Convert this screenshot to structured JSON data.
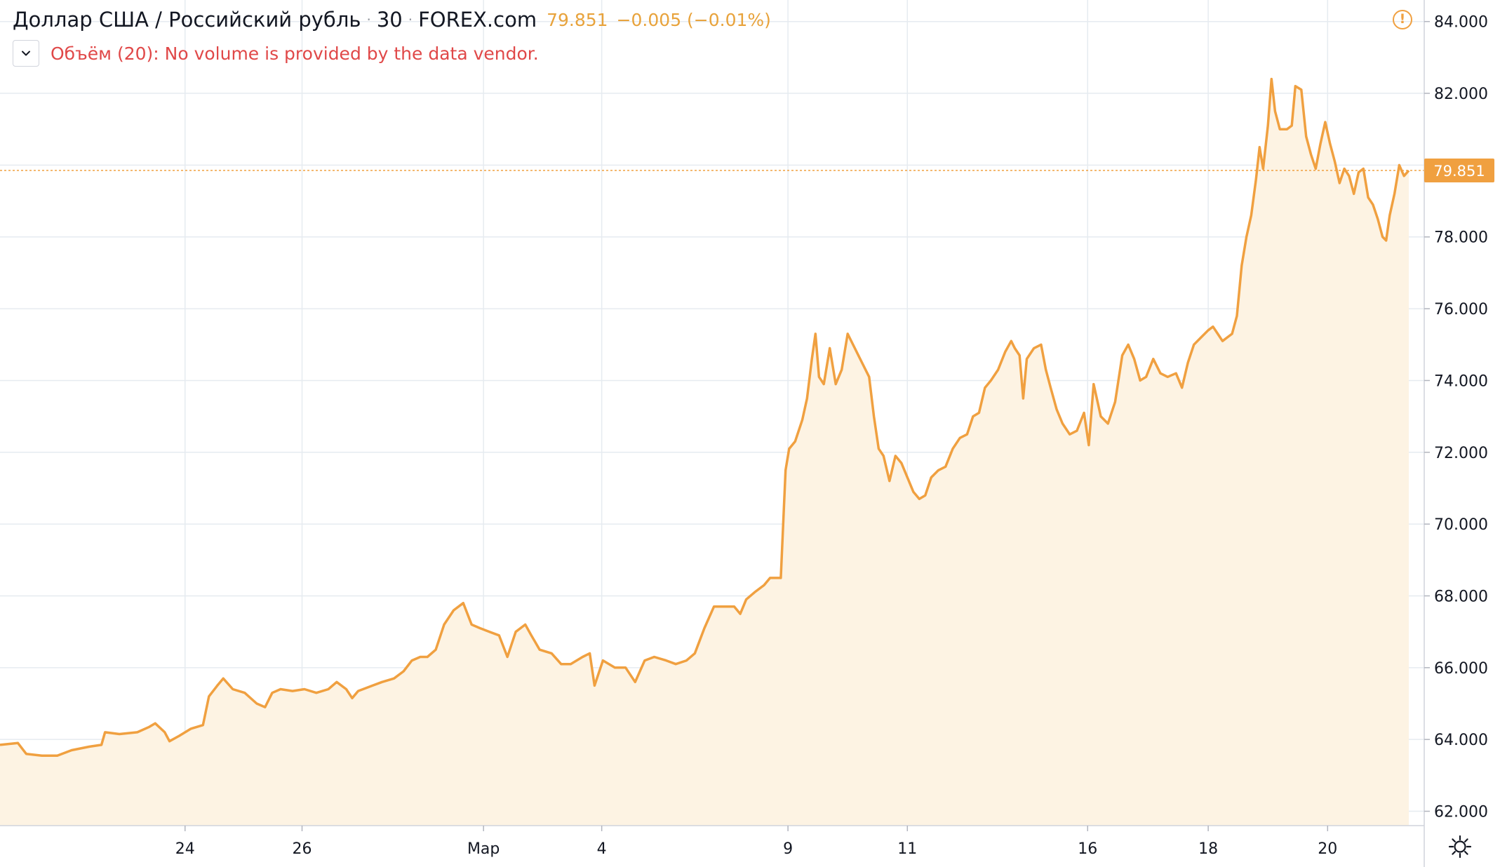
{
  "header": {
    "symbol": "Доллар США / Российский рубль",
    "interval": "30",
    "exchange": "FOREX.com",
    "last_price": "79.851",
    "change": "−0.005 (−0.01%)"
  },
  "volume_indicator": {
    "message": "Объём (20): No volume is provided by the data vendor."
  },
  "colors": {
    "line": "#f0a040",
    "fill": "#fdf3e3",
    "grid": "#e6ebf0",
    "price_tag": "#f0a040",
    "warning": "#f0a040",
    "volume_msg": "#e04848"
  },
  "icons": [
    "chevron-down-icon",
    "warning-icon",
    "gear-icon"
  ],
  "chart_data": {
    "type": "area",
    "title": "Доллар США / Российский рубль",
    "ylim": [
      61.6,
      84.6
    ],
    "xlim": [
      0,
      1180
    ],
    "grid": true,
    "price_axis": "right",
    "last_price": 79.851,
    "y_ticks": [
      {
        "value": 62,
        "label": "62.000"
      },
      {
        "value": 64,
        "label": "64.000"
      },
      {
        "value": 66,
        "label": "66.000"
      },
      {
        "value": 68,
        "label": "68.000"
      },
      {
        "value": 70,
        "label": "70.000"
      },
      {
        "value": 72,
        "label": "72.000"
      },
      {
        "value": 74,
        "label": "74.000"
      },
      {
        "value": 76,
        "label": "76.000"
      },
      {
        "value": 78,
        "label": "78.000"
      },
      {
        "value": 80,
        "label": "80.000"
      },
      {
        "value": 82,
        "label": "82.000"
      },
      {
        "value": 84,
        "label": "84.000"
      }
    ],
    "x_ticks": [
      {
        "x": 155,
        "label": "24"
      },
      {
        "x": 253,
        "label": "26"
      },
      {
        "x": 405,
        "label": "Мар"
      },
      {
        "x": 504,
        "label": "4"
      },
      {
        "x": 660,
        "label": "9"
      },
      {
        "x": 760,
        "label": "11"
      },
      {
        "x": 911,
        "label": "16"
      },
      {
        "x": 1012,
        "label": "18"
      },
      {
        "x": 1112,
        "label": "20"
      }
    ],
    "series": [
      {
        "points": [
          [
            0,
            63.85
          ],
          [
            15,
            63.9
          ],
          [
            22,
            63.6
          ],
          [
            35,
            63.55
          ],
          [
            48,
            63.55
          ],
          [
            60,
            63.7
          ],
          [
            75,
            63.8
          ],
          [
            85,
            63.85
          ],
          [
            88,
            64.2
          ],
          [
            100,
            64.15
          ],
          [
            115,
            64.2
          ],
          [
            125,
            64.35
          ],
          [
            130,
            64.45
          ],
          [
            138,
            64.2
          ],
          [
            142,
            63.95
          ],
          [
            150,
            64.1
          ],
          [
            160,
            64.3
          ],
          [
            170,
            64.4
          ],
          [
            175,
            65.2
          ],
          [
            182,
            65.5
          ],
          [
            187,
            65.7
          ],
          [
            195,
            65.4
          ],
          [
            205,
            65.3
          ],
          [
            215,
            65.0
          ],
          [
            222,
            64.9
          ],
          [
            228,
            65.3
          ],
          [
            235,
            65.4
          ],
          [
            245,
            65.35
          ],
          [
            255,
            65.4
          ],
          [
            265,
            65.3
          ],
          [
            275,
            65.4
          ],
          [
            282,
            65.6
          ],
          [
            290,
            65.4
          ],
          [
            295,
            65.15
          ],
          [
            300,
            65.35
          ],
          [
            312,
            65.5
          ],
          [
            320,
            65.6
          ],
          [
            330,
            65.7
          ],
          [
            338,
            65.9
          ],
          [
            345,
            66.2
          ],
          [
            352,
            66.3
          ],
          [
            358,
            66.3
          ],
          [
            365,
            66.5
          ],
          [
            372,
            67.2
          ],
          [
            380,
            67.6
          ],
          [
            388,
            67.8
          ],
          [
            395,
            67.2
          ],
          [
            402,
            67.1
          ],
          [
            410,
            67.0
          ],
          [
            418,
            66.9
          ],
          [
            425,
            66.3
          ],
          [
            432,
            67.0
          ],
          [
            440,
            67.2
          ],
          [
            445,
            66.9
          ],
          [
            452,
            66.5
          ],
          [
            462,
            66.4
          ],
          [
            470,
            66.1
          ],
          [
            478,
            66.1
          ],
          [
            488,
            66.3
          ],
          [
            494,
            66.4
          ],
          [
            498,
            65.5
          ],
          [
            505,
            66.2
          ],
          [
            515,
            66.0
          ],
          [
            524,
            66.0
          ],
          [
            532,
            65.6
          ],
          [
            540,
            66.2
          ],
          [
            548,
            66.3
          ],
          [
            558,
            66.2
          ],
          [
            566,
            66.1
          ],
          [
            575,
            66.2
          ],
          [
            582,
            66.4
          ],
          [
            590,
            67.1
          ],
          [
            598,
            67.7
          ],
          [
            606,
            67.7
          ],
          [
            615,
            67.7
          ],
          [
            620,
            67.5
          ],
          [
            625,
            67.9
          ],
          [
            632,
            68.1
          ],
          [
            640,
            68.3
          ],
          [
            645,
            68.5
          ],
          [
            650,
            68.5
          ],
          [
            654,
            68.5
          ],
          [
            656,
            70.0
          ],
          [
            658,
            71.5
          ],
          [
            661,
            72.1
          ],
          [
            666,
            72.3
          ],
          [
            672,
            72.9
          ],
          [
            676,
            73.5
          ],
          [
            680,
            74.6
          ],
          [
            683,
            75.3
          ],
          [
            686,
            74.1
          ],
          [
            690,
            73.9
          ],
          [
            695,
            74.9
          ],
          [
            700,
            73.9
          ],
          [
            705,
            74.3
          ],
          [
            710,
            75.3
          ],
          [
            716,
            74.9
          ],
          [
            722,
            74.5
          ],
          [
            728,
            74.1
          ],
          [
            732,
            73.0
          ],
          [
            736,
            72.1
          ],
          [
            740,
            71.9
          ],
          [
            745,
            71.2
          ],
          [
            750,
            71.9
          ],
          [
            755,
            71.7
          ],
          [
            760,
            71.3
          ],
          [
            765,
            70.9
          ],
          [
            770,
            70.7
          ],
          [
            775,
            70.8
          ],
          [
            780,
            71.3
          ],
          [
            786,
            71.5
          ],
          [
            792,
            71.6
          ],
          [
            798,
            72.1
          ],
          [
            804,
            72.4
          ],
          [
            810,
            72.5
          ],
          [
            815,
            73.0
          ],
          [
            820,
            73.1
          ],
          [
            825,
            73.8
          ],
          [
            830,
            74.0
          ],
          [
            836,
            74.3
          ],
          [
            842,
            74.8
          ],
          [
            847,
            75.1
          ],
          [
            850,
            74.9
          ],
          [
            854,
            74.7
          ],
          [
            857,
            73.5
          ],
          [
            860,
            74.6
          ],
          [
            866,
            74.9
          ],
          [
            872,
            75.0
          ],
          [
            876,
            74.3
          ],
          [
            880,
            73.8
          ],
          [
            885,
            73.2
          ],
          [
            890,
            72.8
          ],
          [
            896,
            72.5
          ],
          [
            902,
            72.6
          ],
          [
            908,
            73.1
          ],
          [
            912,
            72.2
          ],
          [
            916,
            73.9
          ],
          [
            922,
            73.0
          ],
          [
            928,
            72.8
          ],
          [
            934,
            73.4
          ],
          [
            940,
            74.7
          ],
          [
            945,
            75.0
          ],
          [
            950,
            74.6
          ],
          [
            955,
            74.0
          ],
          [
            960,
            74.1
          ],
          [
            966,
            74.6
          ],
          [
            972,
            74.2
          ],
          [
            978,
            74.1
          ],
          [
            985,
            74.2
          ],
          [
            990,
            73.8
          ],
          [
            995,
            74.5
          ],
          [
            1000,
            75.0
          ],
          [
            1006,
            75.2
          ],
          [
            1012,
            75.4
          ],
          [
            1016,
            75.5
          ],
          [
            1020,
            75.3
          ],
          [
            1024,
            75.1
          ],
          [
            1028,
            75.2
          ],
          [
            1032,
            75.3
          ],
          [
            1036,
            75.8
          ],
          [
            1040,
            77.2
          ],
          [
            1044,
            78.0
          ],
          [
            1048,
            78.6
          ],
          [
            1052,
            79.6
          ],
          [
            1055,
            80.5
          ],
          [
            1058,
            79.9
          ],
          [
            1062,
            81.1
          ],
          [
            1065,
            82.4
          ],
          [
            1068,
            81.5
          ],
          [
            1072,
            81.0
          ],
          [
            1078,
            81.0
          ],
          [
            1082,
            81.1
          ],
          [
            1085,
            82.2
          ],
          [
            1090,
            82.1
          ],
          [
            1094,
            80.8
          ],
          [
            1098,
            80.3
          ],
          [
            1102,
            79.9
          ],
          [
            1106,
            80.6
          ],
          [
            1110,
            81.2
          ],
          [
            1114,
            80.6
          ],
          [
            1118,
            80.1
          ],
          [
            1122,
            79.5
          ],
          [
            1126,
            79.9
          ],
          [
            1130,
            79.7
          ],
          [
            1134,
            79.2
          ],
          [
            1138,
            79.8
          ],
          [
            1142,
            79.9
          ],
          [
            1146,
            79.1
          ],
          [
            1150,
            78.9
          ],
          [
            1154,
            78.5
          ],
          [
            1158,
            78.0
          ],
          [
            1161,
            77.9
          ],
          [
            1164,
            78.6
          ],
          [
            1168,
            79.2
          ],
          [
            1172,
            80.0
          ],
          [
            1176,
            79.7
          ],
          [
            1180,
            79.85
          ]
        ]
      }
    ]
  }
}
